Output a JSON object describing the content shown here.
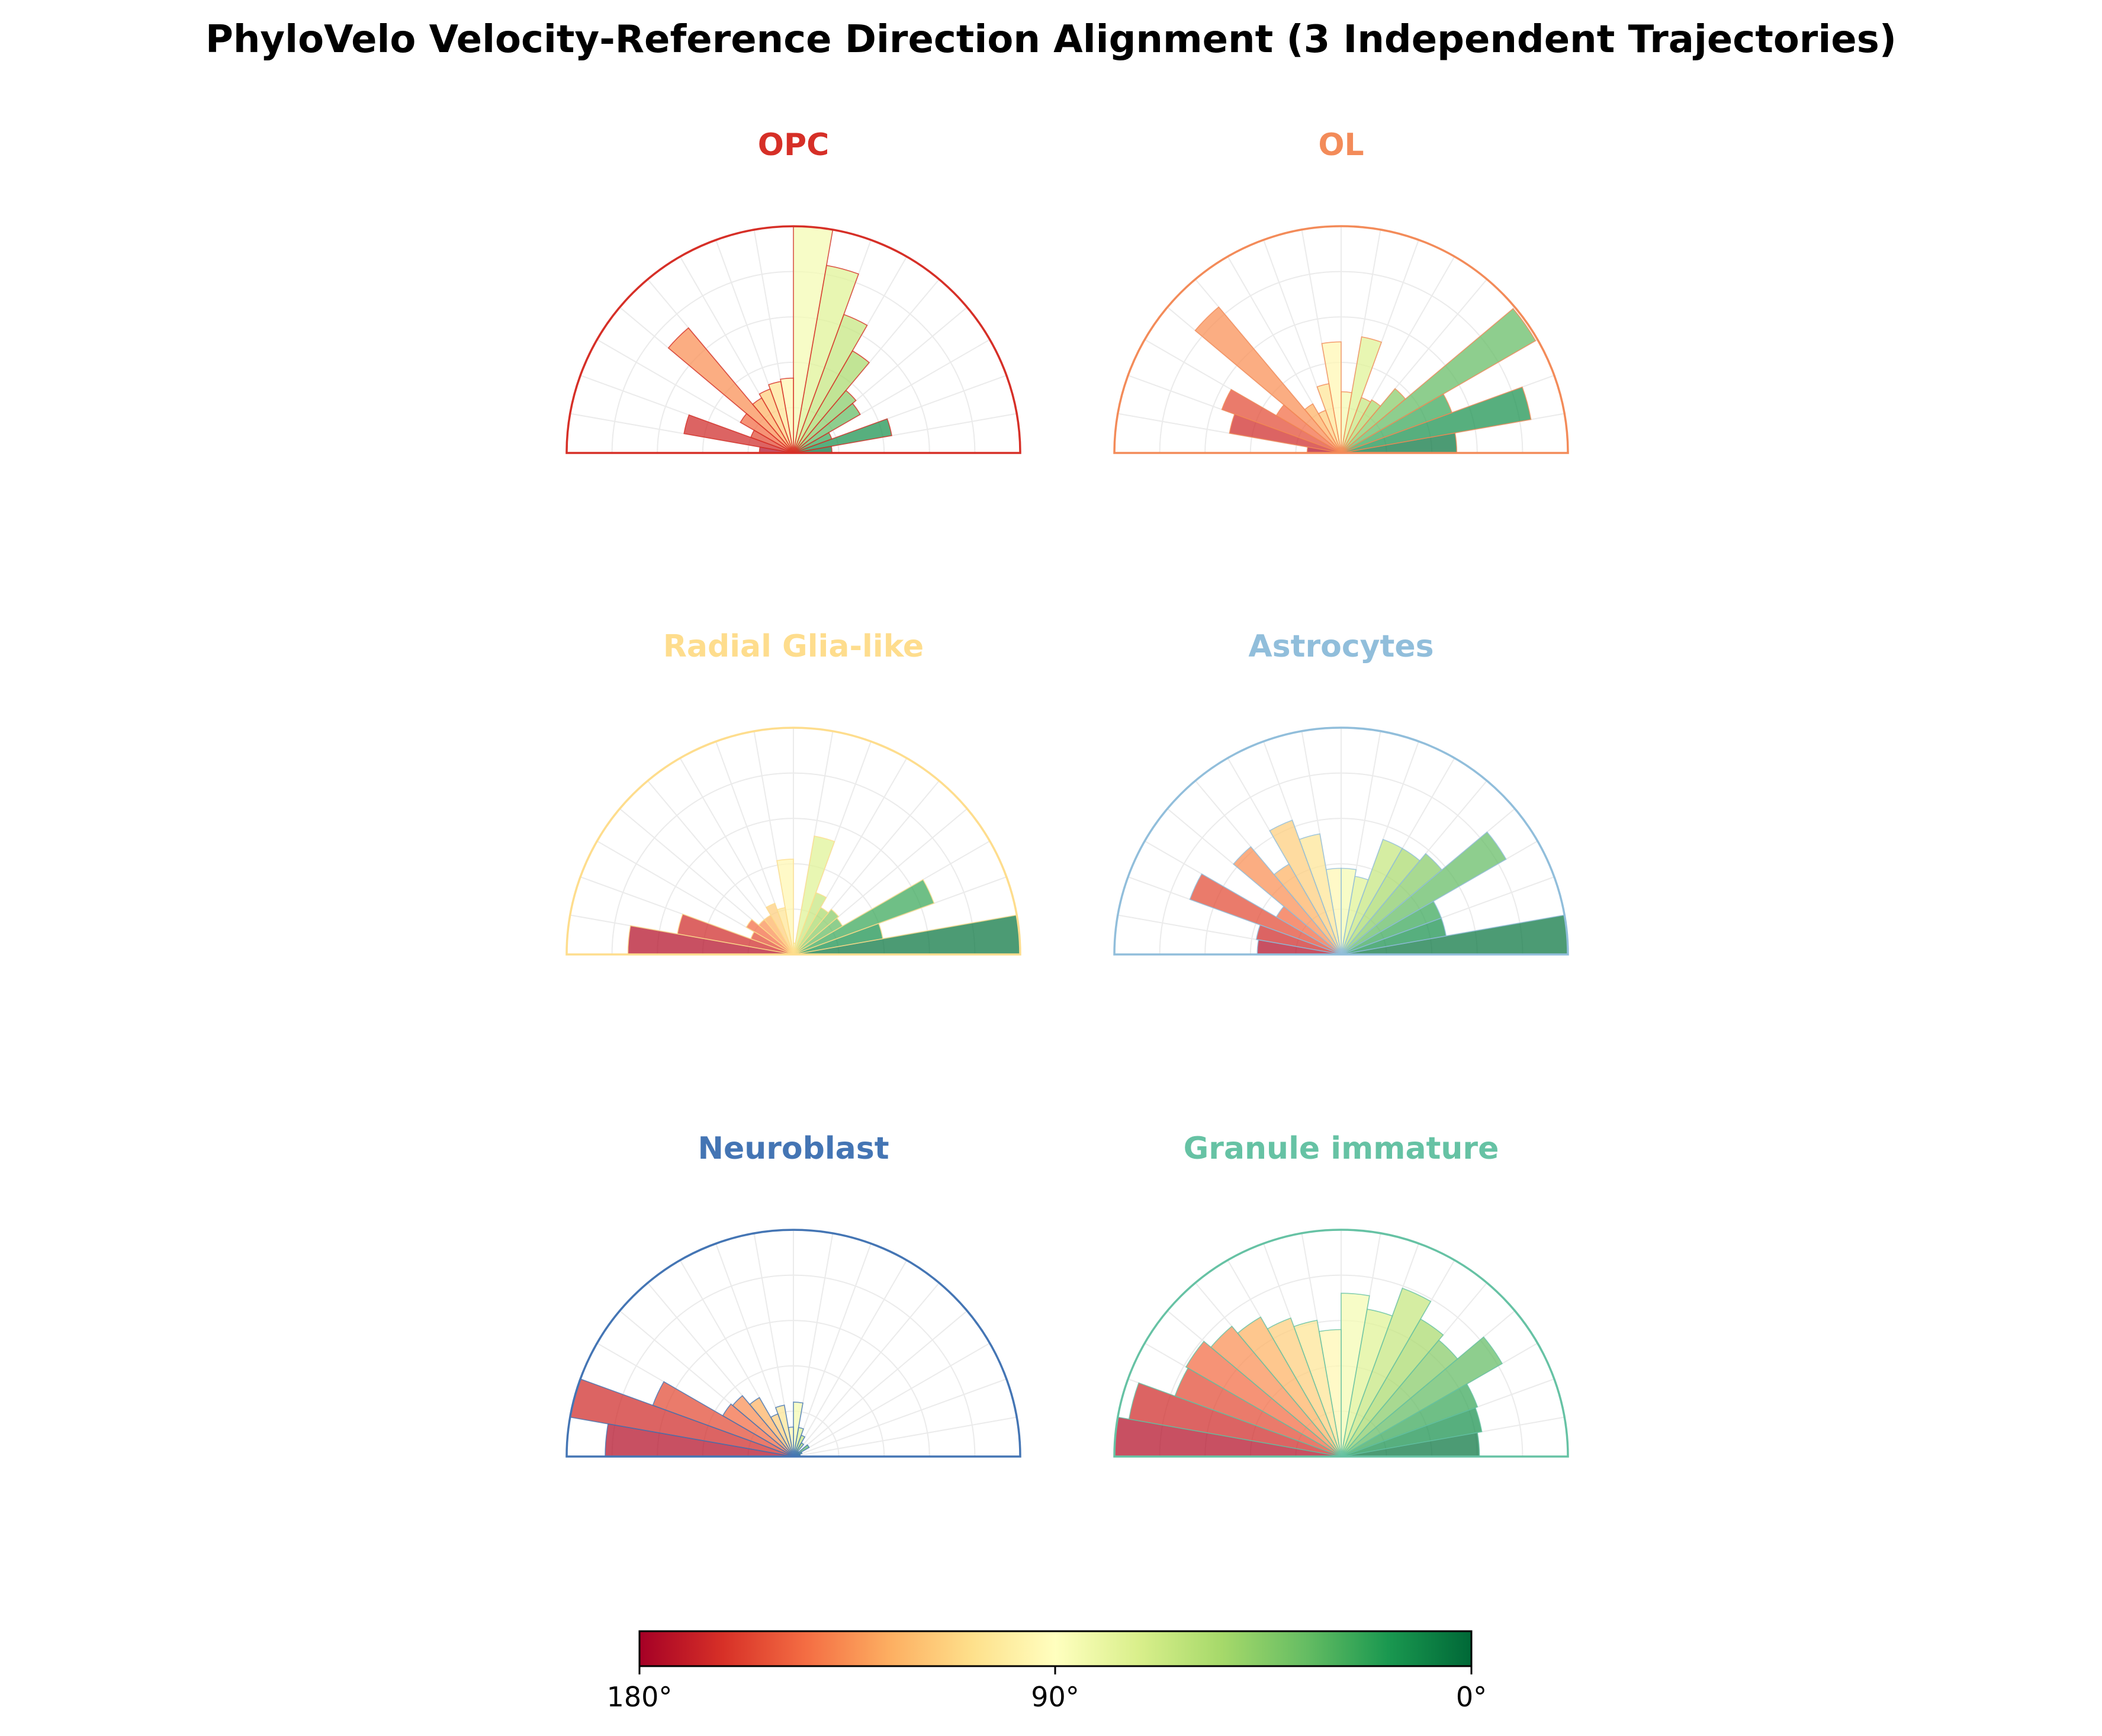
{
  "chart_data": {
    "type": "polar-histogram",
    "title": "PhyloVelo Velocity-Reference Direction Alignment (3 Independent Trajectories)",
    "theta_range_deg": [
      0,
      180
    ],
    "bin_width_deg": 10,
    "bin_centers_deg": [
      5,
      15,
      25,
      35,
      45,
      55,
      65,
      75,
      85,
      95,
      105,
      115,
      125,
      135,
      145,
      155,
      165,
      175
    ],
    "radius_max": 1.0,
    "colormap": "RdYlGn (angle 0° = green, 90° = yellow, 180° = red)",
    "panels": [
      {
        "name": "OPC",
        "color": "#d62f27",
        "values": [
          0.17,
          0.44,
          0.18,
          0.34,
          0.36,
          0.52,
          0.65,
          0.84,
          1.0,
          0.33,
          0.32,
          0.3,
          0.28,
          0.72,
          0.27,
          0.2,
          0.49,
          0.15
        ]
      },
      {
        "name": "OL",
        "color": "#f38b59",
        "values": [
          0.51,
          0.85,
          0.52,
          0.99,
          0.37,
          0.27,
          0.26,
          0.52,
          0.27,
          0.49,
          0.31,
          0.2,
          0.25,
          0.84,
          0.33,
          0.56,
          0.5,
          0.15
        ]
      },
      {
        "name": "Radial Glia-like",
        "color": "#fedd8d",
        "values": [
          1.0,
          0.4,
          0.66,
          0.25,
          0.26,
          0.24,
          0.29,
          0.53,
          0.05,
          0.42,
          0.21,
          0.24,
          0.2,
          0.2,
          0.24,
          0.2,
          0.52,
          0.73
        ]
      },
      {
        "name": "Astrocytes",
        "color": "#91bedb",
        "values": [
          1.0,
          0.47,
          0.47,
          0.84,
          0.58,
          0.54,
          0.54,
          0.35,
          0.38,
          0.38,
          0.54,
          0.63,
          0.46,
          0.62,
          0.33,
          0.71,
          0.38,
          0.37
        ]
      },
      {
        "name": "Neuroblast",
        "color": "#4475b4",
        "values": [
          0.03,
          0.03,
          0.04,
          0.08,
          0.03,
          0.07,
          0.1,
          0.13,
          0.24,
          0.13,
          0.23,
          0.2,
          0.3,
          0.35,
          0.36,
          0.66,
          1.0,
          0.83
        ]
      },
      {
        "name": "Granule immature",
        "color": "#66c2a4",
        "values": [
          0.61,
          0.63,
          0.64,
          0.82,
          0.67,
          0.7,
          0.79,
          0.66,
          0.72,
          0.56,
          0.61,
          0.65,
          0.71,
          0.75,
          0.79,
          0.78,
          0.95,
          1.0
        ]
      }
    ],
    "colorbar": {
      "ticks": [
        "180°",
        "90°",
        "0°"
      ]
    }
  }
}
